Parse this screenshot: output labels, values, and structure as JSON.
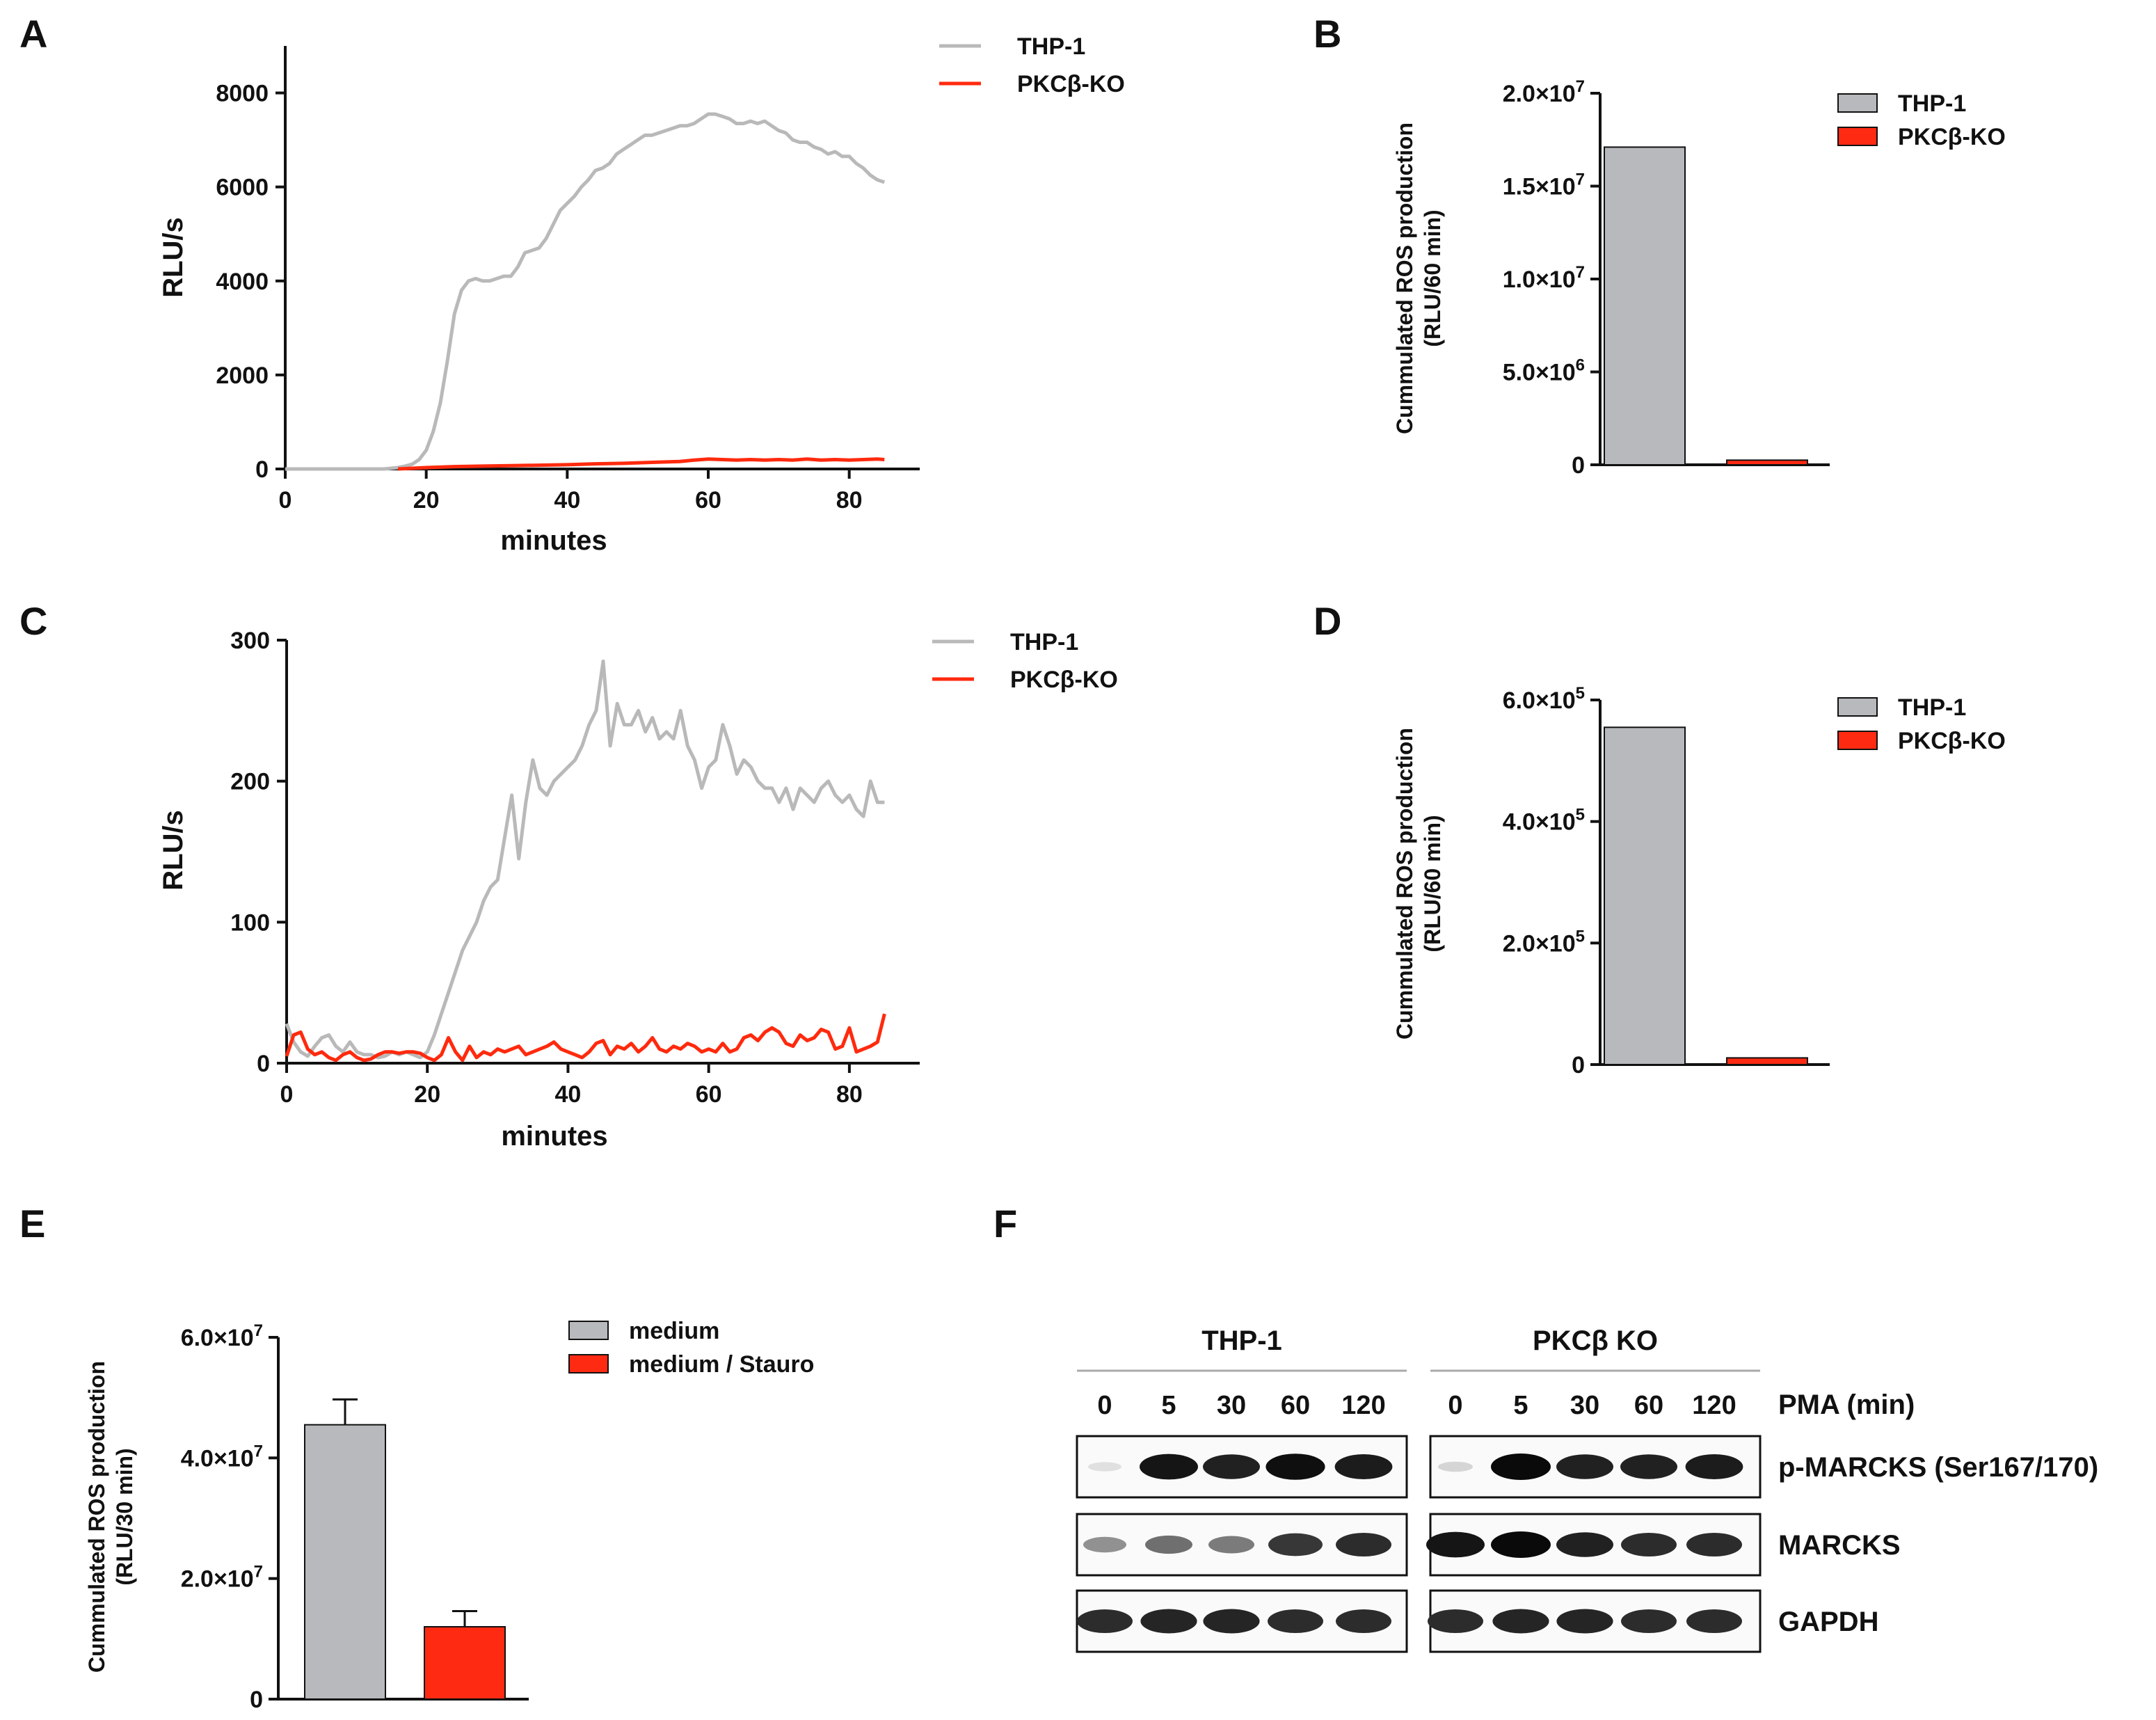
{
  "colors": {
    "thp1_line": "#b9b9b9",
    "ko_line": "#ff2a0e",
    "thp1_bar": "#b7b9bc",
    "ko_bar": "#ff2a12",
    "axis": "#111111"
  },
  "panels": {
    "A": {
      "letter": "A"
    },
    "B": {
      "letter": "B"
    },
    "C": {
      "letter": "C"
    },
    "D": {
      "letter": "D"
    },
    "E": {
      "letter": "E"
    },
    "F": {
      "letter": "F"
    }
  },
  "chart_data": [
    {
      "id": "A",
      "type": "line",
      "xlabel": "minutes",
      "ylabel": "RLU/s",
      "xlim": [
        0,
        90
      ],
      "ylim": [
        0,
        9000
      ],
      "xticks": [
        0,
        20,
        40,
        60,
        80
      ],
      "yticks": [
        0,
        2000,
        4000,
        6000,
        8000
      ],
      "legend": "top-right",
      "series": [
        {
          "name": "THP-1",
          "color": "#b9b9b9",
          "x": [
            0,
            2,
            4,
            6,
            8,
            10,
            12,
            14,
            16,
            17,
            18,
            19,
            20,
            21,
            22,
            23,
            24,
            25,
            26,
            27,
            28,
            29,
            30,
            31,
            32,
            33,
            34,
            35,
            36,
            37,
            38,
            39,
            40,
            41,
            42,
            43,
            44,
            45,
            46,
            47,
            48,
            49,
            50,
            51,
            52,
            53,
            54,
            55,
            56,
            57,
            58,
            59,
            60,
            61,
            62,
            63,
            64,
            65,
            66,
            67,
            68,
            69,
            70,
            71,
            72,
            73,
            74,
            75,
            76,
            77,
            78,
            79,
            80,
            81,
            82,
            83,
            84,
            85
          ],
          "y": [
            0,
            0,
            0,
            0,
            0,
            0,
            0,
            0,
            30,
            60,
            100,
            200,
            400,
            800,
            1400,
            2300,
            3300,
            3800,
            4000,
            4050,
            4000,
            4000,
            4050,
            4100,
            4100,
            4300,
            4600,
            4650,
            4700,
            4900,
            5200,
            5500,
            5650,
            5800,
            6000,
            6150,
            6350,
            6400,
            6500,
            6700,
            6800,
            6900,
            7000,
            7100,
            7100,
            7150,
            7200,
            7250,
            7300,
            7300,
            7350,
            7450,
            7550,
            7550,
            7500,
            7450,
            7350,
            7350,
            7400,
            7350,
            7400,
            7300,
            7200,
            7150,
            7000,
            6950,
            6950,
            6850,
            6800,
            6700,
            6750,
            6650,
            6650,
            6500,
            6400,
            6250,
            6150,
            6100
          ]
        },
        {
          "name": "PKCβ-KO",
          "color": "#ff2a0e",
          "x": [
            16,
            20,
            24,
            28,
            32,
            36,
            40,
            44,
            48,
            52,
            56,
            58,
            60,
            62,
            64,
            66,
            68,
            70,
            72,
            74,
            76,
            78,
            80,
            82,
            84,
            85
          ],
          "y": [
            0,
            30,
            50,
            60,
            70,
            80,
            90,
            110,
            120,
            140,
            160,
            190,
            210,
            200,
            190,
            200,
            190,
            200,
            190,
            210,
            190,
            200,
            190,
            200,
            210,
            200
          ]
        }
      ]
    },
    {
      "id": "B",
      "type": "bar",
      "ylabel_lines": [
        "Cummulated ROS production",
        "(RLU/60 min)"
      ],
      "ylim": [
        0,
        20000000
      ],
      "yticks": [
        0,
        5000000,
        10000000,
        15000000,
        20000000
      ],
      "ytick_labels": [
        {
          "mant": "0",
          "exp": ""
        },
        {
          "mant": "5.0×10",
          "exp": "6"
        },
        {
          "mant": "1.0×10",
          "exp": "7"
        },
        {
          "mant": "1.5×10",
          "exp": "7"
        },
        {
          "mant": "2.0×10",
          "exp": "7"
        }
      ],
      "categories": [
        "THP-1",
        "PKCβ-KO"
      ],
      "values": [
        17100000,
        250000
      ],
      "colors": [
        "#b7b9bc",
        "#ff2a12"
      ],
      "legend": "top-right"
    },
    {
      "id": "C",
      "type": "line",
      "xlabel": "minutes",
      "ylabel": "RLU/s",
      "xlim": [
        0,
        90
      ],
      "ylim": [
        0,
        300
      ],
      "xticks": [
        0,
        20,
        40,
        60,
        80
      ],
      "yticks": [
        0,
        100,
        200,
        300
      ],
      "legend": "top-right",
      "series": [
        {
          "name": "THP-1",
          "color": "#b9b9b9",
          "x": [
            0,
            1,
            2,
            3,
            4,
            5,
            6,
            7,
            8,
            9,
            10,
            11,
            12,
            13,
            14,
            15,
            16,
            17,
            18,
            19,
            20,
            21,
            22,
            23,
            24,
            25,
            26,
            27,
            28,
            29,
            30,
            31,
            32,
            33,
            34,
            35,
            36,
            37,
            38,
            39,
            40,
            41,
            42,
            43,
            44,
            45,
            46,
            47,
            48,
            49,
            50,
            51,
            52,
            53,
            54,
            55,
            56,
            57,
            58,
            59,
            60,
            61,
            62,
            63,
            64,
            65,
            66,
            67,
            68,
            69,
            70,
            71,
            72,
            73,
            74,
            75,
            76,
            77,
            78,
            79,
            80,
            81,
            82,
            83,
            84,
            85
          ],
          "y": [
            28,
            15,
            8,
            5,
            12,
            18,
            20,
            12,
            8,
            15,
            8,
            6,
            6,
            4,
            5,
            8,
            6,
            8,
            6,
            4,
            8,
            20,
            35,
            50,
            65,
            80,
            90,
            100,
            115,
            125,
            130,
            160,
            190,
            145,
            185,
            215,
            195,
            190,
            200,
            205,
            210,
            215,
            225,
            240,
            250,
            285,
            225,
            255,
            240,
            240,
            250,
            235,
            245,
            230,
            235,
            230,
            250,
            225,
            215,
            195,
            210,
            215,
            240,
            225,
            205,
            215,
            210,
            200,
            195,
            195,
            185,
            195,
            180,
            195,
            190,
            185,
            195,
            200,
            190,
            185,
            190,
            180,
            175,
            200,
            185,
            185
          ]
        },
        {
          "name": "PKCβ-KO",
          "color": "#ff2a0e",
          "x": [
            0,
            1,
            2,
            3,
            4,
            5,
            6,
            7,
            8,
            9,
            10,
            11,
            12,
            13,
            14,
            15,
            16,
            17,
            18,
            19,
            20,
            21,
            22,
            23,
            24,
            25,
            26,
            27,
            28,
            29,
            30,
            31,
            32,
            33,
            34,
            35,
            36,
            37,
            38,
            39,
            40,
            41,
            42,
            43,
            44,
            45,
            46,
            47,
            48,
            49,
            50,
            51,
            52,
            53,
            54,
            55,
            56,
            57,
            58,
            59,
            60,
            61,
            62,
            63,
            64,
            65,
            66,
            67,
            68,
            69,
            70,
            71,
            72,
            73,
            74,
            75,
            76,
            77,
            78,
            79,
            80,
            81,
            82,
            83,
            84,
            85
          ],
          "y": [
            5,
            20,
            22,
            10,
            6,
            8,
            4,
            2,
            6,
            8,
            4,
            2,
            3,
            6,
            8,
            8,
            7,
            8,
            8,
            7,
            4,
            2,
            6,
            18,
            8,
            2,
            12,
            4,
            8,
            6,
            10,
            8,
            10,
            12,
            6,
            8,
            10,
            12,
            15,
            10,
            8,
            6,
            4,
            8,
            14,
            16,
            6,
            12,
            10,
            14,
            8,
            12,
            18,
            10,
            8,
            12,
            10,
            14,
            12,
            8,
            10,
            8,
            14,
            8,
            10,
            18,
            20,
            16,
            22,
            25,
            22,
            14,
            12,
            20,
            16,
            18,
            24,
            22,
            10,
            12,
            25,
            8,
            10,
            12,
            15,
            35
          ]
        }
      ]
    },
    {
      "id": "D",
      "type": "bar",
      "ylabel_lines": [
        "Cummulated ROS production",
        "(RLU/60 min)"
      ],
      "ylim": [
        0,
        600000
      ],
      "yticks": [
        0,
        200000,
        400000,
        600000
      ],
      "ytick_labels": [
        {
          "mant": "0",
          "exp": ""
        },
        {
          "mant": "2.0×10",
          "exp": "5"
        },
        {
          "mant": "4.0×10",
          "exp": "5"
        },
        {
          "mant": "6.0×10",
          "exp": "5"
        }
      ],
      "categories": [
        "THP-1",
        "PKCβ-KO"
      ],
      "values": [
        555000,
        11000
      ],
      "colors": [
        "#b7b9bc",
        "#ff2a12"
      ],
      "legend": "top-right"
    },
    {
      "id": "E",
      "type": "bar",
      "ylabel_lines": [
        "Cummulated ROS production",
        "(RLU/30 min)"
      ],
      "ylim": [
        0,
        60000000
      ],
      "yticks": [
        0,
        20000000,
        40000000,
        60000000
      ],
      "ytick_labels": [
        {
          "mant": "0",
          "exp": ""
        },
        {
          "mant": "2.0×10",
          "exp": "7"
        },
        {
          "mant": "4.0×10",
          "exp": "7"
        },
        {
          "mant": "6.0×10",
          "exp": "7"
        }
      ],
      "categories": [
        "medium",
        "medium / Stauro"
      ],
      "values": [
        45500000,
        12000000
      ],
      "errors": [
        4200000,
        2600000
      ],
      "colors": [
        "#b7b9bc",
        "#ff2a12"
      ],
      "legend": "top-right"
    }
  ],
  "blot": {
    "group_labels": [
      "THP-1",
      "PKCβ KO"
    ],
    "lanes": [
      "0",
      "5",
      "30",
      "60",
      "120"
    ],
    "treatment_label": "PMA (min)",
    "rows": [
      {
        "label": "p-MARCKS (Ser167/170)",
        "group1": [
          0.05,
          0.95,
          0.9,
          0.98,
          0.92
        ],
        "group2": [
          0.1,
          1.0,
          0.9,
          0.9,
          0.92
        ]
      },
      {
        "label": "MARCKS",
        "group1": [
          0.4,
          0.55,
          0.5,
          0.8,
          0.85
        ],
        "group2": [
          0.95,
          1.0,
          0.9,
          0.85,
          0.85
        ]
      },
      {
        "label": "GAPDH",
        "group1": [
          0.85,
          0.88,
          0.88,
          0.85,
          0.85
        ],
        "group2": [
          0.85,
          0.88,
          0.88,
          0.85,
          0.85
        ]
      }
    ]
  }
}
